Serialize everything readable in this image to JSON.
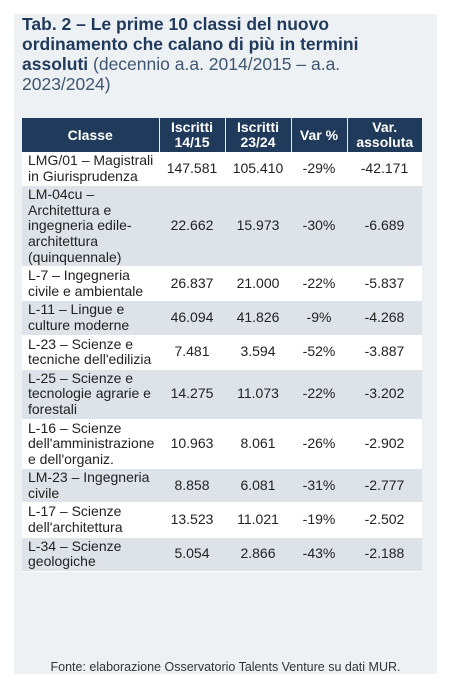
{
  "title": {
    "bold": "Tab. 2 – Le prime 10 classi del nuovo ordinamento che calano di più in termini assoluti",
    "normal": "(decennio a.a. 2014/2015 – a.a. 2023/2024)"
  },
  "table": {
    "headers": {
      "classe": "Classe",
      "iscritti_1415": "Iscritti 14/15",
      "iscritti_2324": "Iscritti 23/24",
      "var_pct": "Var %",
      "var_abs": "Var. assoluta"
    },
    "rows": [
      {
        "classe": "LMG/01 – Magistrali in Giurisprudenza",
        "i1415": "147.581",
        "i2324": "105.410",
        "var_pct": "-29%",
        "var_abs": "-42.171"
      },
      {
        "classe": "LM-04cu – Architettura e ingegneria edile-architettura (quinquennale)",
        "i1415": "22.662",
        "i2324": "15.973",
        "var_pct": "-30%",
        "var_abs": "-6.689"
      },
      {
        "classe": "L-7 – Ingegneria civile e ambientale",
        "i1415": "26.837",
        "i2324": "21.000",
        "var_pct": "-22%",
        "var_abs": "-5.837"
      },
      {
        "classe": "L-11 – Lingue e culture moderne",
        "i1415": "46.094",
        "i2324": "41.826",
        "var_pct": "-9%",
        "var_abs": "-4.268"
      },
      {
        "classe": "L-23 – Scienze e tecniche dell'edilizia",
        "i1415": "7.481",
        "i2324": "3.594",
        "var_pct": "-52%",
        "var_abs": "-3.887"
      },
      {
        "classe": "L-25 – Scienze e tecnologie agrarie e forestali",
        "i1415": "14.275",
        "i2324": "11.073",
        "var_pct": "-22%",
        "var_abs": "-3.202"
      },
      {
        "classe": "L-16 – Scienze dell'amministrazione e dell'organiz.",
        "i1415": "10.963",
        "i2324": "8.061",
        "var_pct": "-26%",
        "var_abs": "-2.902"
      },
      {
        "classe": "LM-23 – Ingegneria civile",
        "i1415": "8.858",
        "i2324": "6.081",
        "var_pct": "-31%",
        "var_abs": "-2.777"
      },
      {
        "classe": "L-17 – Scienze dell'architettura",
        "i1415": "13.523",
        "i2324": "11.021",
        "var_pct": "-19%",
        "var_abs": "-2.502"
      },
      {
        "classe": "L-34 – Scienze geologiche",
        "i1415": "5.054",
        "i2324": "2.866",
        "var_pct": "-43%",
        "var_abs": "-2.188"
      }
    ]
  },
  "source": "Fonte: elaborazione Osservatorio Talents Venture su dati MUR."
}
